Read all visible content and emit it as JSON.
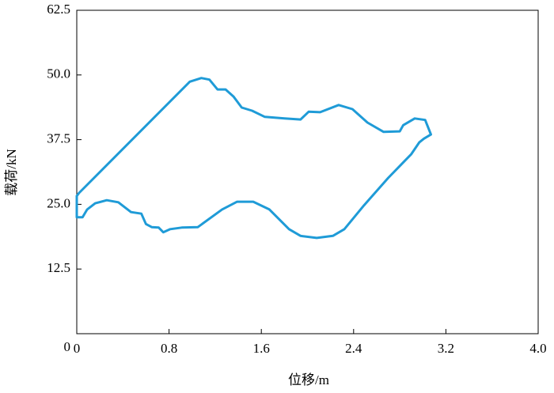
{
  "chart_data": {
    "type": "line",
    "x_label": "位移/m",
    "y_label": "载荷/kN",
    "series": [
      {
        "color": "#1f9bd7",
        "x": [
          0,
          0.02,
          0.98,
          1.08,
          1.15,
          1.22,
          1.29,
          1.36,
          1.43,
          1.52,
          1.63,
          1.8,
          1.94,
          2.01,
          2.11,
          2.27,
          2.39,
          2.52,
          2.66,
          2.8,
          2.83,
          2.93,
          3.02,
          3.07,
          3.01,
          2.97,
          2.9,
          2.7,
          2.49,
          2.32,
          2.22,
          2.08,
          1.94,
          1.84,
          1.67,
          1.53,
          1.39,
          1.26,
          1.05,
          0.91,
          0.81,
          0.75,
          0.71,
          0.65,
          0.6,
          0.56,
          0.47,
          0.36,
          0.26,
          0.16,
          0.09,
          0.05,
          0,
          0
        ],
        "values": [
          26.6,
          27.2,
          48.7,
          49.4,
          49.1,
          47.2,
          47.2,
          45.8,
          43.7,
          43.1,
          41.9,
          41.6,
          41.4,
          42.9,
          42.8,
          44.2,
          43.4,
          40.8,
          39.0,
          39.1,
          40.3,
          41.6,
          41.3,
          38.5,
          37.7,
          37.0,
          34.7,
          30.1,
          24.8,
          20.2,
          18.9,
          18.5,
          18.9,
          20.2,
          24.0,
          25.5,
          25.5,
          24.0,
          20.6,
          20.5,
          20.2,
          19.6,
          20.5,
          20.6,
          21.2,
          23.2,
          23.5,
          25.4,
          25.8,
          25.2,
          24.0,
          22.5,
          22.5,
          26.6
        ]
      }
    ],
    "xlim": [
      0,
      4
    ],
    "xticks": [
      0,
      0.8,
      1.6,
      2.4,
      3.2,
      {
        "value": 4,
        "label": "4.0"
      }
    ],
    "ylim": [
      0,
      62.5
    ],
    "yticks": [
      0,
      12.5,
      {
        "value": 25,
        "label": "25.0"
      },
      37.5,
      {
        "value": 50,
        "label": "50.0"
      },
      62.5
    ]
  }
}
